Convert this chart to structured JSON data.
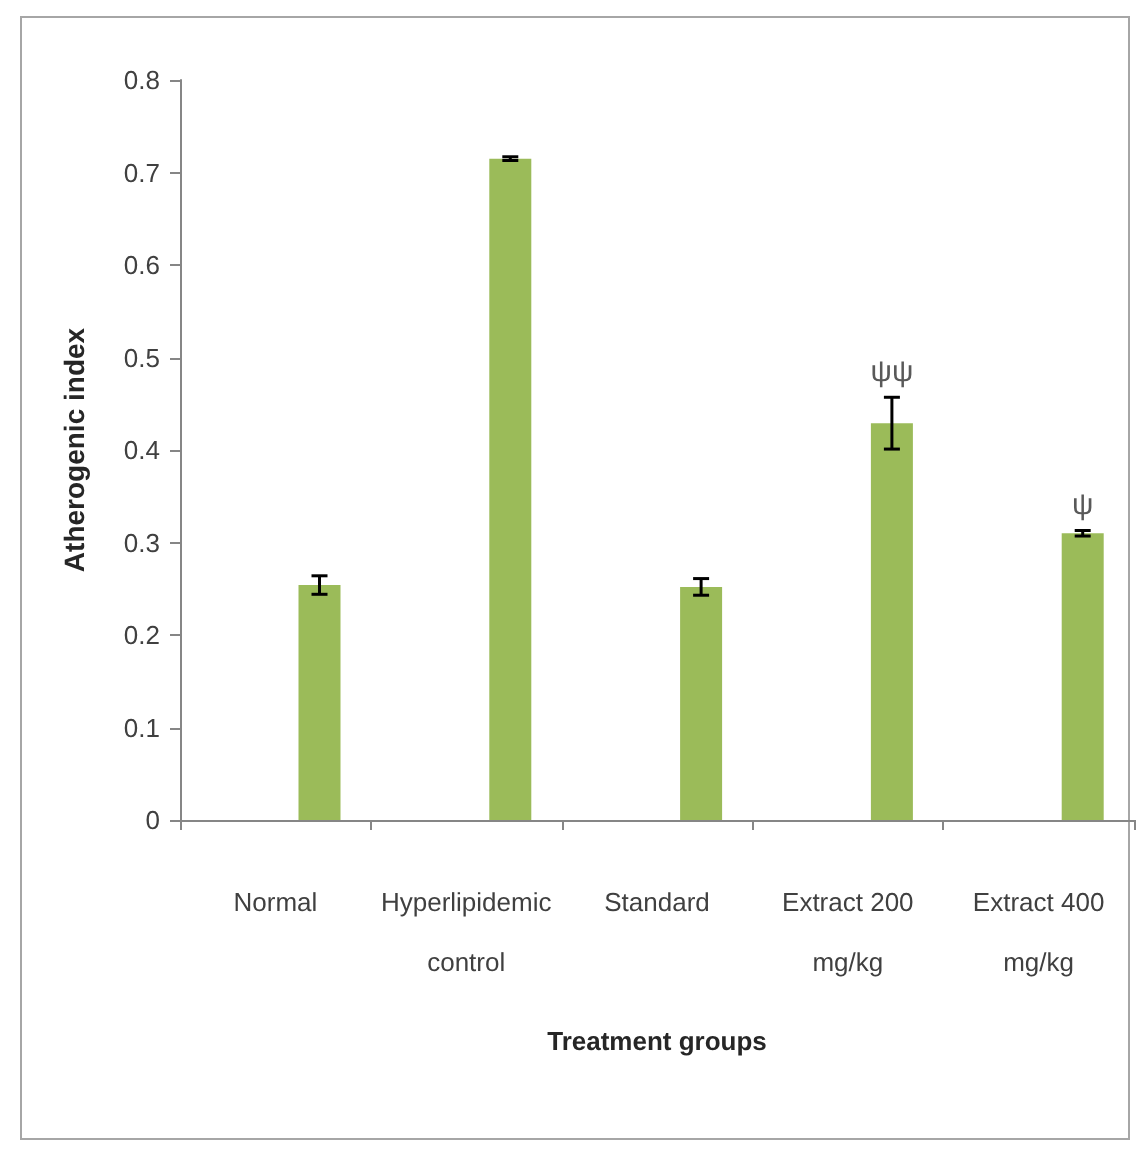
{
  "chart_data": {
    "type": "bar",
    "xlabel": "Treatment groups",
    "ylabel": "Atherogenic index",
    "categories": [
      "Normal",
      "Hyperlipidemic control",
      "Standard",
      "Extract 200 mg/kg",
      "Extract 400 mg/kg"
    ],
    "values": [
      0.254,
      0.715,
      0.252,
      0.429,
      0.31
    ],
    "errors": [
      0.01,
      0.002,
      0.009,
      0.028,
      0.003
    ],
    "color": "#9bbb59",
    "ylim": [
      0,
      0.8
    ],
    "yticks": [
      0,
      0.1,
      0.2,
      0.3,
      0.4,
      0.5,
      0.6,
      0.7,
      0.8
    ],
    "grid": false,
    "annotations": [
      "ψψ",
      "ψ"
    ]
  }
}
